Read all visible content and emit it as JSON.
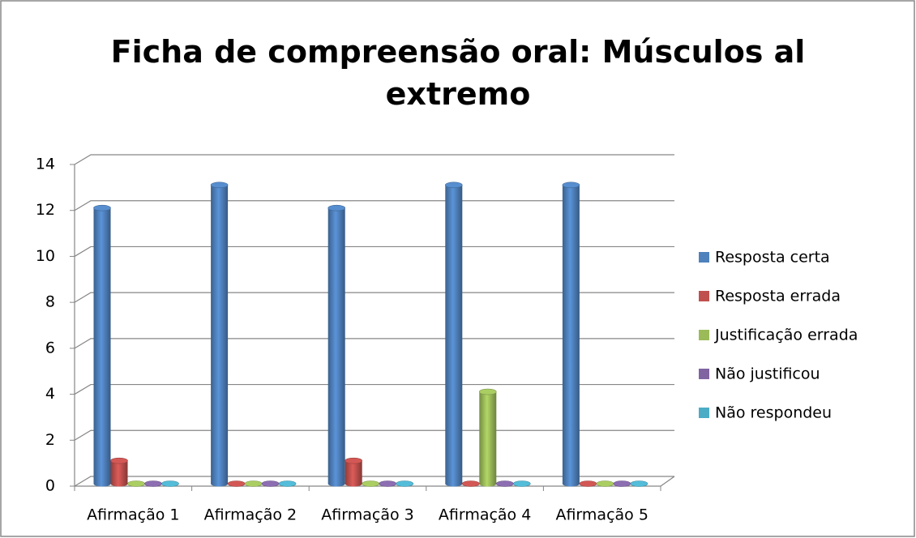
{
  "chart_data": {
    "type": "bar",
    "title": "Ficha de compreensão oral: Músculos al extremo",
    "categories": [
      "Afirmação 1",
      "Afirmação 2",
      "Afirmação 3",
      "Afirmação 4",
      "Afirmação 5"
    ],
    "series": [
      {
        "name": "Resposta certa",
        "color": "#4f81bd",
        "values": [
          12,
          13,
          12,
          13,
          13
        ]
      },
      {
        "name": "Resposta errada",
        "color": "#c0504d",
        "values": [
          1,
          0,
          1,
          0,
          0
        ]
      },
      {
        "name": "Justificação errada",
        "color": "#9bbb59",
        "values": [
          0,
          0,
          0,
          4,
          0
        ]
      },
      {
        "name": "Não justificou",
        "color": "#8064a2",
        "values": [
          0,
          0,
          0,
          0,
          0
        ]
      },
      {
        "name": "Não respondeu",
        "color": "#4bacc6",
        "values": [
          0,
          0,
          0,
          0,
          0
        ]
      }
    ],
    "ylim": [
      0,
      14
    ],
    "yticks": [
      0,
      2,
      4,
      6,
      8,
      10,
      12,
      14
    ],
    "grid": true,
    "legend": "right"
  }
}
